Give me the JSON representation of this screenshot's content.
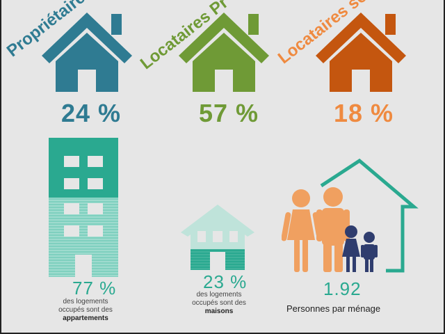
{
  "tenure": [
    {
      "label": "Propriétaires",
      "value": "24 %",
      "color": "#2f7b92"
    },
    {
      "label": "Locataires Pr",
      "value": "57 %",
      "color": "#6f9a36"
    },
    {
      "label": "Locataires so",
      "value": "18 %",
      "color": "#c4560f"
    }
  ],
  "value_color_3": "#ef8a40",
  "apartments": {
    "value": "77 %",
    "line1": "des logements",
    "line2": "occupés sont des",
    "bold": "appartements",
    "color": "#2aa990"
  },
  "houses": {
    "value": "23 %",
    "line1": "des logements",
    "line2": "occupés sont des",
    "bold": "maisons",
    "color": "#2aa990"
  },
  "household": {
    "value": "1.92",
    "label": "Personnes par ménage",
    "people_color": "#f0a060",
    "children_color": "#2f3d6e",
    "roof_color": "#2aa990"
  }
}
